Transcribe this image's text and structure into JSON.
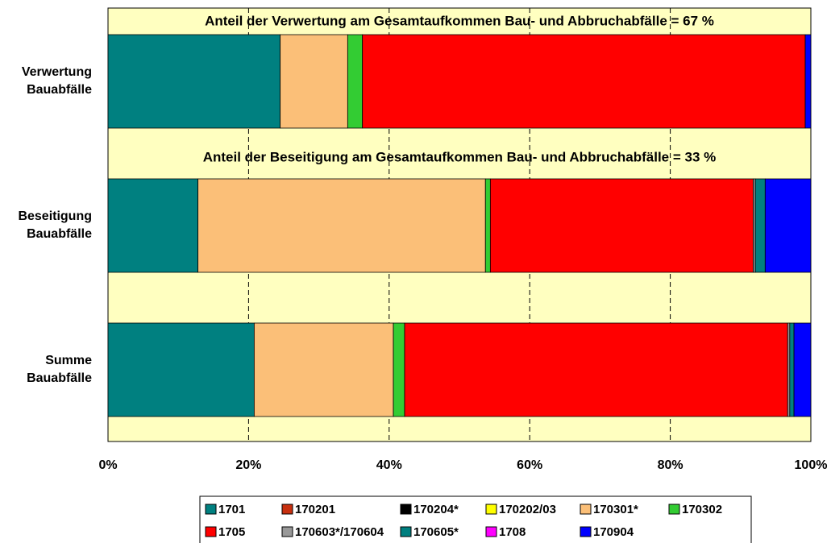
{
  "chart_data": {
    "type": "stacked_barh",
    "categories": [
      "Verwertung\nBauabfälle",
      "Beseitigung\nBauabfälle",
      "Summe\nBauabfälle"
    ],
    "annotations": [
      "Anteil der Verwertung am Gesamtaufkommen Bau- und Abbruchabfälle = 67 %",
      "Anteil der Beseitigung am Gesamtaufkommen Bau- und Abbruchabfälle = 33 %"
    ],
    "series": [
      {
        "name": "1701",
        "color": "#008080",
        "values": [
          24.5,
          12.8,
          20.8
        ]
      },
      {
        "name": "170201",
        "color": "#c8300f",
        "values": [
          0,
          0,
          0
        ]
      },
      {
        "name": "170204*",
        "color": "#000000",
        "values": [
          0,
          0,
          0
        ]
      },
      {
        "name": "170202/03",
        "color": "#ffff00",
        "values": [
          0,
          0,
          0
        ]
      },
      {
        "name": "170301*",
        "color": "#fbbf78",
        "values": [
          9.6,
          40.9,
          19.8
        ]
      },
      {
        "name": "170302",
        "color": "#33cc33",
        "values": [
          2.1,
          0.7,
          1.6
        ]
      },
      {
        "name": "1705",
        "color": "#ff0000",
        "values": [
          63.0,
          37.4,
          54.5
        ]
      },
      {
        "name": "170603*/170604",
        "color": "#999999",
        "values": [
          0,
          0.3,
          0.3
        ]
      },
      {
        "name": "170605*",
        "color": "#008080",
        "values": [
          0,
          1.4,
          0.6
        ]
      },
      {
        "name": "1708",
        "color": "#ff00ff",
        "values": [
          0,
          0,
          0
        ]
      },
      {
        "name": "170904",
        "color": "#0000ff",
        "values": [
          0.8,
          6.5,
          2.4
        ]
      }
    ],
    "xlim": [
      0,
      100
    ],
    "xticks": [
      {
        "value": 0,
        "label": "0%"
      },
      {
        "value": 20,
        "label": "20%"
      },
      {
        "value": 40,
        "label": "40%"
      },
      {
        "value": 60,
        "label": "60%"
      },
      {
        "value": 80,
        "label": "80%"
      },
      {
        "value": 100,
        "label": "100%"
      }
    ],
    "grid": true,
    "background": "#ffffc0"
  }
}
